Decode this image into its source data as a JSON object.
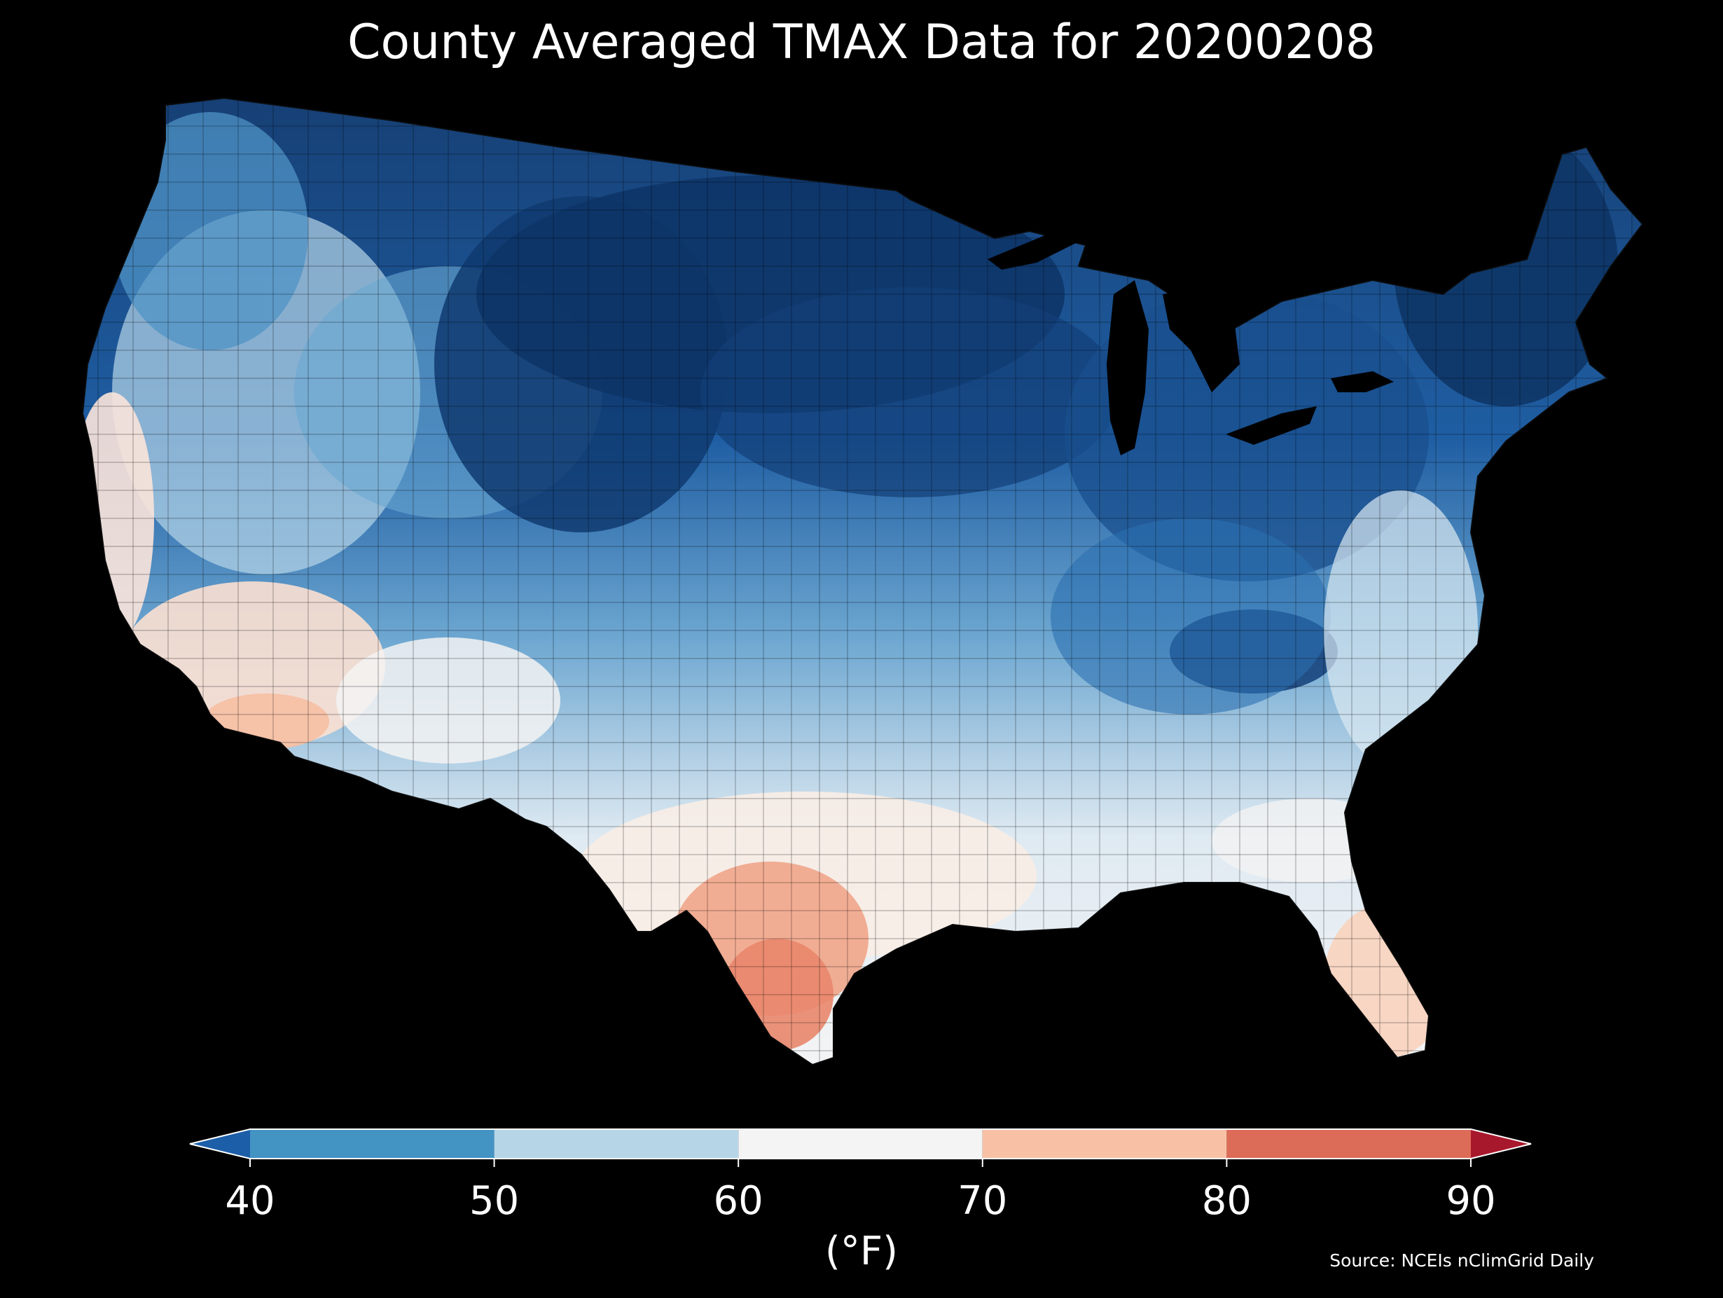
{
  "title": "County Averaged TMAX Data for 20200208",
  "source": "Source: NCEIs nClimGrid Daily",
  "colorbar": {
    "unit_label": "(°F)",
    "ticks": [
      "40",
      "50",
      "60",
      "70",
      "80",
      "90"
    ],
    "bins": [
      {
        "range": "<40",
        "color": "#1c5ea8"
      },
      {
        "range": "40-50",
        "color": "#4393c3"
      },
      {
        "range": "50-60",
        "color": "#b6d6e8"
      },
      {
        "range": "60-70",
        "color": "#f4f4f4"
      },
      {
        "range": "70-80",
        "color": "#f8c1a6"
      },
      {
        "range": "80-90",
        "color": "#dc6b57"
      },
      {
        "range": ">90",
        "color": "#a8182c"
      }
    ]
  },
  "map": {
    "region": "Contiguous United States",
    "variable": "TMAX",
    "date": "20200208",
    "background_color": "#000000",
    "water_color": "#000000",
    "county_border_color": "#1a1a1a"
  }
}
